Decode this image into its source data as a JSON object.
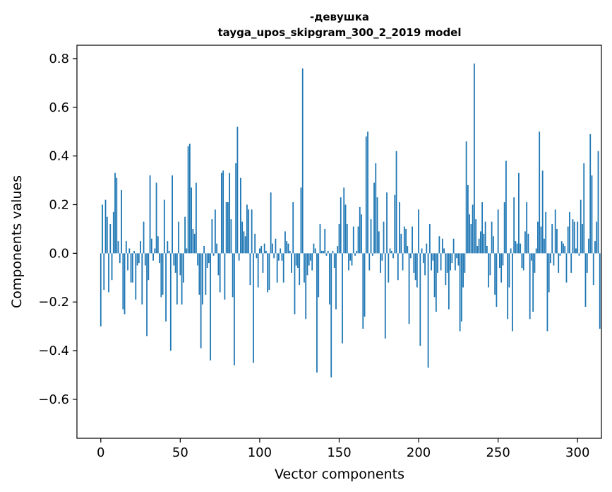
{
  "chart_data": {
    "type": "bar",
    "title": "-девушка",
    "subtitle": "tayga_upos_skipgram_300_2_2019 model",
    "xlabel": "Vector components",
    "ylabel": "Components values",
    "xlim": [
      -15,
      315
    ],
    "ylim": [
      -0.76,
      0.855
    ],
    "xticks": [
      0,
      50,
      100,
      150,
      200,
      250,
      300
    ],
    "xtick_labels": [
      "0",
      "50",
      "100",
      "150",
      "200",
      "250",
      "300"
    ],
    "yticks": [
      -0.6,
      -0.4,
      -0.2,
      0.0,
      0.2,
      0.4,
      0.6,
      0.8
    ],
    "ytick_labels": [
      "−0.6",
      "−0.4",
      "−0.2",
      "0.0",
      "0.2",
      "0.4",
      "0.6",
      "0.8"
    ],
    "grid": false,
    "bar_color": "#1f77b4",
    "values": [
      -0.3,
      0.2,
      -0.15,
      0.22,
      0.15,
      -0.16,
      0.12,
      -0.11,
      0.17,
      0.33,
      0.31,
      0.05,
      -0.04,
      0.26,
      -0.23,
      -0.25,
      0.05,
      -0.07,
      0.02,
      -0.12,
      -0.12,
      0.01,
      -0.19,
      -0.05,
      -0.04,
      0.05,
      -0.21,
      0.13,
      -0.05,
      -0.34,
      -0.11,
      0.32,
      0.06,
      -0.03,
      0.02,
      0.29,
      0.07,
      -0.04,
      -0.18,
      -0.17,
      0.22,
      -0.28,
      0.05,
      0.01,
      -0.4,
      0.32,
      -0.05,
      -0.08,
      -0.21,
      0.13,
      -0.09,
      -0.21,
      -0.12,
      0.15,
      0.02,
      0.44,
      0.45,
      0.27,
      0.1,
      0.08,
      0.29,
      -0.05,
      -0.17,
      -0.39,
      -0.21,
      0.03,
      -0.17,
      -0.06,
      -0.04,
      -0.44,
      0.14,
      -0.01,
      0.18,
      0.04,
      -0.09,
      -0.16,
      0.33,
      0.34,
      -0.19,
      0.21,
      0.21,
      0.33,
      0.14,
      -0.18,
      -0.46,
      0.37,
      0.52,
      -0.03,
      0.31,
      0.13,
      0.09,
      0.07,
      0.2,
      0.18,
      -0.13,
      0.18,
      -0.45,
      0.08,
      -0.02,
      -0.14,
      0.02,
      0.03,
      -0.08,
      0.04,
      0.01,
      -0.16,
      -0.15,
      0.25,
      0.04,
      -0.02,
      0.06,
      -0.12,
      -0.03,
      0.02,
      -0.03,
      -0.12,
      0.09,
      0.05,
      0.04,
      0.01,
      -0.08,
      0.21,
      -0.25,
      -0.05,
      -0.06,
      -0.13,
      0.27,
      0.76,
      -0.12,
      -0.27,
      -0.09,
      -0.05,
      -0.03,
      -0.07,
      0.04,
      0.02,
      -0.49,
      -0.18,
      0.12,
      0.01,
      0.01,
      0.1,
      -0.01,
      0.01,
      -0.21,
      -0.51,
      0.01,
      -0.06,
      -0.23,
      0.03,
      0.12,
      0.23,
      -0.37,
      0.27,
      0.2,
      0.12,
      -0.07,
      -0.03,
      -0.05,
      0.11,
      -0.01,
      0.01,
      0.11,
      0.19,
      0.16,
      -0.31,
      -0.26,
      0.48,
      0.5,
      -0.07,
      0.14,
      -0.01,
      0.29,
      0.37,
      0.23,
      0.09,
      -0.08,
      -0.03,
      0.13,
      -0.35,
      0.25,
      -0.12,
      0.02,
      0.01,
      -0.02,
      0.24,
      0.42,
      -0.11,
      0.21,
      0.08,
      -0.07,
      0.11,
      0.1,
      0.03,
      -0.29,
      -0.02,
      0.11,
      -0.08,
      -0.11,
      -0.14,
      0.18,
      -0.38,
      0.02,
      -0.04,
      -0.09,
      0.04,
      -0.47,
      0.12,
      -0.07,
      -0.03,
      -0.18,
      -0.24,
      -0.08,
      0.07,
      -0.07,
      0.06,
      0.02,
      -0.13,
      -0.08,
      -0.23,
      -0.07,
      -0.04,
      0.06,
      -0.07,
      -0.02,
      -0.05,
      -0.32,
      -0.28,
      -0.14,
      -0.08,
      0.46,
      0.28,
      0.16,
      0.12,
      0.2,
      0.78,
      0.14,
      0.03,
      0.06,
      0.09,
      0.21,
      0.08,
      0.13,
      0.03,
      -0.14,
      -0.09,
      0.13,
      0.07,
      -0.17,
      -0.22,
      0.18,
      -0.06,
      -0.12,
      -0.05,
      0.21,
      0.38,
      -0.27,
      -0.14,
      0.02,
      -0.32,
      0.23,
      0.05,
      0.04,
      0.33,
      0.04,
      -0.06,
      -0.07,
      0.09,
      0.21,
      0.08,
      -0.27,
      -0.03,
      -0.24,
      -0.08,
      0.02,
      0.13,
      0.5,
      0.11,
      0.34,
      0.06,
      0.17,
      -0.32,
      -0.16,
      -0.04,
      0.12,
      -0.05,
      0.18,
      0.1,
      -0.08,
      -0.01,
      0.05,
      0.04,
      0.03,
      -0.12,
      0.11,
      0.17,
      -0.08,
      0.14,
      0.13,
      0.02,
      0.13,
      -0.01,
      0.22,
      0.12,
      0.37,
      -0.22,
      -0.08,
      0.06,
      0.49,
      0.32,
      -0.13,
      0.05,
      0.13,
      0.42,
      -0.31
    ]
  }
}
